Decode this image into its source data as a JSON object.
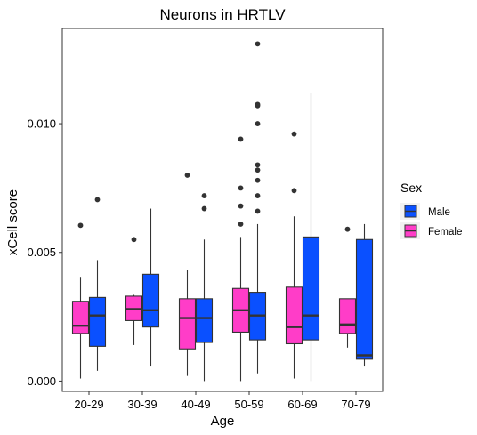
{
  "chart_data": {
    "type": "box",
    "title": "Neurons in HRTLV",
    "xlabel": "Age",
    "ylabel": "xCell score",
    "categories": [
      "20-29",
      "30-39",
      "40-49",
      "50-59",
      "60-69",
      "70-79"
    ],
    "y_ticks": [
      0.0,
      0.005,
      0.01
    ],
    "y_tick_labels": [
      "0.000",
      "0.005",
      "0.010"
    ],
    "ylim": [
      -0.0004,
      0.0137
    ],
    "grid": false,
    "legend": {
      "title": "Sex",
      "position": "right",
      "items": [
        {
          "label": "Male",
          "color": "#0a50ff"
        },
        {
          "label": "Female",
          "color": "#ff3dc8"
        }
      ]
    },
    "series": [
      {
        "name": "Female",
        "color": "#ff3dc8",
        "boxes": [
          {
            "min": 0.0001,
            "q1": 0.00185,
            "median": 0.00215,
            "q3": 0.0031,
            "max": 0.00405,
            "outliers": [
              0.00605
            ]
          },
          {
            "min": 0.0014,
            "q1": 0.00235,
            "median": 0.0028,
            "q3": 0.0033,
            "max": 0.00335,
            "outliers": [
              0.0055
            ]
          },
          {
            "min": 0.0002,
            "q1": 0.00125,
            "median": 0.00245,
            "q3": 0.0032,
            "max": 0.0043,
            "outliers": [
              0.008
            ]
          },
          {
            "min": 0.0,
            "q1": 0.0019,
            "median": 0.00275,
            "q3": 0.0036,
            "max": 0.0056,
            "outliers": [
              0.0061,
              0.0068,
              0.0075,
              0.0094
            ]
          },
          {
            "min": 0.0001,
            "q1": 0.00145,
            "median": 0.0021,
            "q3": 0.00365,
            "max": 0.0064,
            "outliers": [
              0.0074,
              0.0096
            ]
          },
          {
            "min": 0.0013,
            "q1": 0.00185,
            "median": 0.0022,
            "q3": 0.0032,
            "max": 0.0032,
            "outliers": [
              0.0059
            ]
          }
        ]
      },
      {
        "name": "Male",
        "color": "#0a50ff",
        "boxes": [
          {
            "min": 0.0004,
            "q1": 0.00135,
            "median": 0.00255,
            "q3": 0.00325,
            "max": 0.0047,
            "outliers": [
              0.00705
            ]
          },
          {
            "min": 0.0006,
            "q1": 0.0021,
            "median": 0.00275,
            "q3": 0.00415,
            "max": 0.0067,
            "outliers": []
          },
          {
            "min": 0.0,
            "q1": 0.0015,
            "median": 0.00245,
            "q3": 0.0032,
            "max": 0.0055,
            "outliers": [
              0.0067,
              0.0072
            ]
          },
          {
            "min": 0.0003,
            "q1": 0.0016,
            "median": 0.00255,
            "q3": 0.00345,
            "max": 0.0061,
            "outliers": [
              0.0066,
              0.0072,
              0.0078,
              0.0082,
              0.0084,
              0.01,
              0.0107,
              0.01075,
              0.0131
            ]
          },
          {
            "min": 0.0,
            "q1": 0.0016,
            "median": 0.00255,
            "q3": 0.0056,
            "max": 0.0112,
            "outliers": []
          },
          {
            "min": 0.0006,
            "q1": 0.00085,
            "median": 0.001,
            "q3": 0.0055,
            "max": 0.0061,
            "outliers": []
          }
        ]
      }
    ]
  }
}
